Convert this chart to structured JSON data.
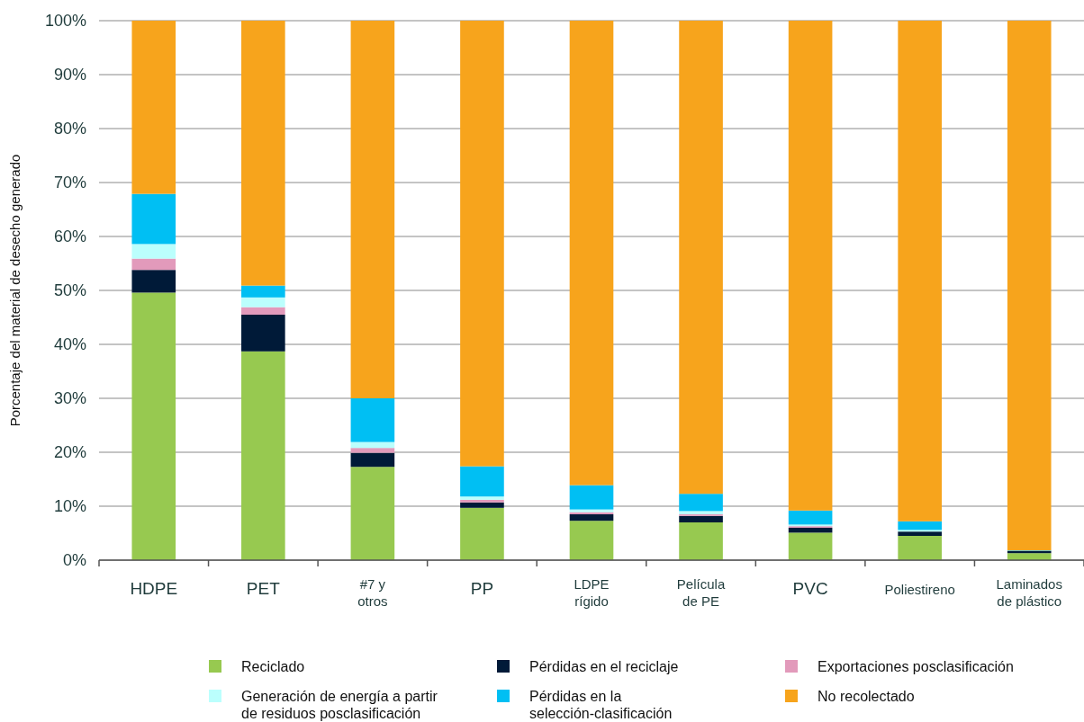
{
  "chart_data": {
    "type": "bar",
    "stacked": true,
    "ylabel": "Porcentaje del material de desecho generado",
    "categories": [
      "HDPE",
      "PET",
      "#7 y\notros",
      "PP",
      "LDPE\nrígido",
      "Película\nde PE",
      "PVC",
      "Poliestireno",
      "Laminados\nde plástico"
    ],
    "ylim": [
      0,
      100
    ],
    "yticks": [
      {
        "value": 0,
        "label": "0%"
      },
      {
        "value": 10,
        "label": "10%"
      },
      {
        "value": 20,
        "label": "20%"
      },
      {
        "value": 30,
        "label": "30%"
      },
      {
        "value": 40,
        "label": "40%"
      },
      {
        "value": 50,
        "label": "50%"
      },
      {
        "value": 60,
        "label": "60%"
      },
      {
        "value": 70,
        "label": "70%"
      },
      {
        "value": 80,
        "label": "80%"
      },
      {
        "value": 90,
        "label": "90%"
      },
      {
        "value": 100,
        "label": "100%"
      }
    ],
    "grid": "y",
    "legend": "bottom",
    "series": [
      {
        "name": "Reciclado",
        "color": "#97c950",
        "values": [
          49.6,
          38.7,
          17.3,
          9.7,
          7.3,
          7.0,
          5.1,
          4.5,
          1.3
        ]
      },
      {
        "name": "Pérdidas en el reciclaje",
        "color": "#001a38",
        "values": [
          4.2,
          6.8,
          2.6,
          1.0,
          1.2,
          1.2,
          0.9,
          0.8,
          0.4
        ]
      },
      {
        "name": "Exportaciones posclasificación",
        "color": "#e29abb",
        "values": [
          2.1,
          1.4,
          0.9,
          0.5,
          0.4,
          0.3,
          0.3,
          null,
          0
        ]
      },
      {
        "name": "Generación de energía a partir de residuos posclasificación",
        "color": "#bbfffd",
        "values": [
          2.7,
          1.8,
          1.1,
          0.6,
          0.5,
          0.6,
          0.3,
          0.3,
          0
        ]
      },
      {
        "name": "Pérdidas en la selección-clasificación",
        "color": "#00bff3",
        "values": [
          9.3,
          2.2,
          8.1,
          5.6,
          4.5,
          3.2,
          2.6,
          1.6,
          0.1
        ]
      },
      {
        "name": "No recolectado",
        "color": "#f7a41c",
        "values": [
          32.1,
          49.1,
          70.0,
          82.6,
          86.1,
          87.7,
          90.8,
          92.8,
          98.2
        ]
      }
    ]
  }
}
